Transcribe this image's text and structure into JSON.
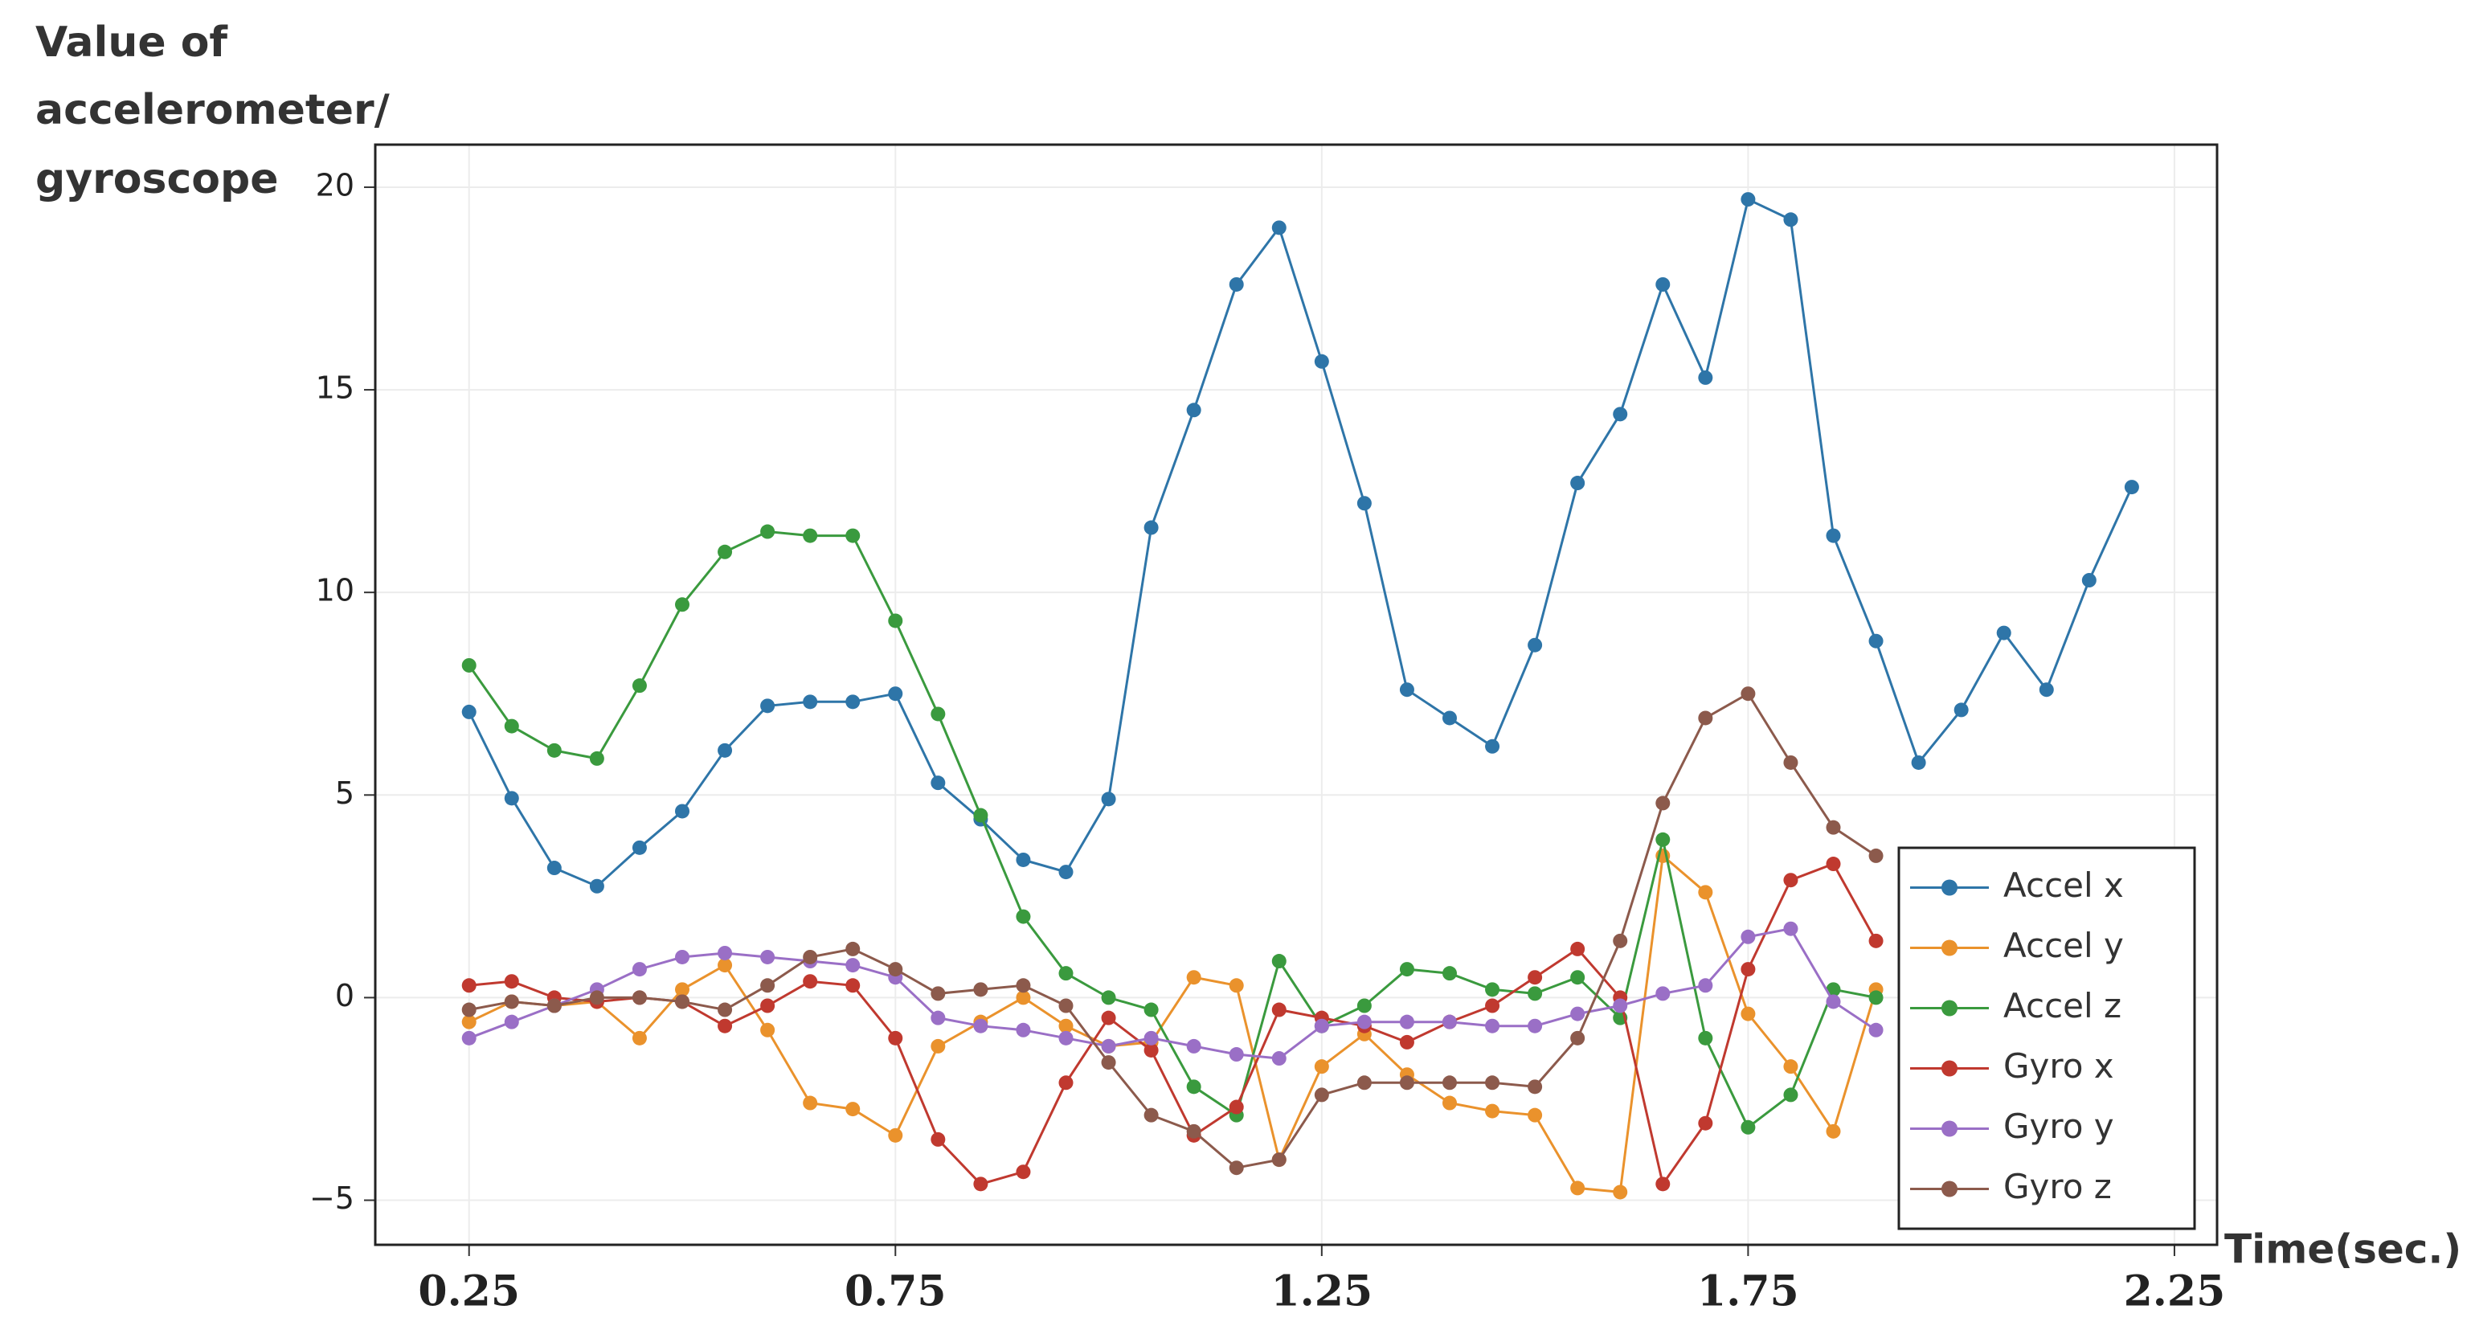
{
  "chart_data": {
    "type": "line",
    "ylabel": [
      "Value of",
      "accelerometer/",
      "gyroscope"
    ],
    "xlabel": "Time(sec.)",
    "x": [
      0.25,
      0.3,
      0.35,
      0.4,
      0.45,
      0.5,
      0.55,
      0.6,
      0.65,
      0.7,
      0.75,
      0.8,
      0.85,
      0.9,
      0.95,
      1.0,
      1.05,
      1.1,
      1.15,
      1.2,
      1.25,
      1.3,
      1.35,
      1.4,
      1.45,
      1.5,
      1.55,
      1.6,
      1.65,
      1.7,
      1.75,
      1.8,
      1.85,
      1.9,
      1.95,
      2.0,
      2.05,
      2.1,
      2.15,
      2.2
    ],
    "series": [
      {
        "name": "Accel x",
        "color": "#2e75a8",
        "values": [
          7.05,
          4.92,
          3.2,
          2.75,
          3.7,
          4.6,
          6.1,
          7.2,
          7.3,
          7.3,
          7.5,
          5.3,
          4.4,
          3.4,
          3.1,
          4.9,
          11.6,
          14.5,
          17.6,
          19.0,
          15.7,
          12.2,
          7.6,
          6.9,
          6.2,
          8.7,
          12.7,
          14.4,
          17.6,
          15.3,
          19.7,
          19.2,
          11.4,
          8.8,
          5.8,
          7.1,
          9.0,
          7.6,
          10.3,
          12.6
        ]
      },
      {
        "name": "Accel y",
        "color": "#ea922c",
        "values": [
          -0.6,
          -0.1,
          -0.2,
          -0.1,
          -1.0,
          0.2,
          0.8,
          -0.8,
          -2.6,
          -2.75,
          -3.4,
          -1.2,
          -0.6,
          0.0,
          -0.7,
          -1.2,
          -1.1,
          0.5,
          0.3,
          -4.0,
          -1.7,
          -0.9,
          -1.9,
          -2.6,
          -2.8,
          -2.9,
          -4.7,
          -4.8,
          3.5,
          2.6,
          -0.4,
          -1.7,
          -3.3,
          0.2,
          null,
          null,
          null,
          null,
          null,
          null
        ]
      },
      {
        "name": "Accel z",
        "color": "#3a9a3e",
        "values": [
          8.2,
          6.7,
          6.1,
          5.9,
          7.7,
          9.7,
          11.0,
          11.5,
          11.4,
          11.4,
          9.3,
          7.0,
          4.5,
          2.0,
          0.6,
          0.0,
          -0.3,
          -2.2,
          -2.9,
          0.9,
          -0.7,
          -0.2,
          0.7,
          0.6,
          0.2,
          0.1,
          0.5,
          -0.5,
          3.9,
          -1.0,
          -3.2,
          -2.4,
          0.2,
          0.0,
          null,
          null,
          null,
          null,
          null,
          null
        ]
      },
      {
        "name": "Gyro x",
        "color": "#c0392f",
        "values": [
          0.3,
          0.4,
          0.0,
          -0.1,
          0.0,
          -0.1,
          -0.7,
          -0.2,
          0.4,
          0.3,
          -1.0,
          -3.5,
          -4.6,
          -4.3,
          -2.1,
          -0.5,
          -1.3,
          -3.4,
          -2.7,
          -0.3,
          -0.5,
          -0.7,
          -1.1,
          -0.6,
          -0.2,
          0.5,
          1.2,
          0.0,
          -4.6,
          -3.1,
          0.7,
          2.9,
          3.3,
          1.4,
          null,
          null,
          null,
          null,
          null,
          null
        ]
      },
      {
        "name": "Gyro y",
        "color": "#9a6fc6",
        "values": [
          -1.0,
          -0.6,
          -0.2,
          0.2,
          0.7,
          1.0,
          1.1,
          1.0,
          0.9,
          0.8,
          0.5,
          -0.5,
          -0.7,
          -0.8,
          -1.0,
          -1.2,
          -1.0,
          -1.2,
          -1.4,
          -1.5,
          -0.7,
          -0.6,
          -0.6,
          -0.6,
          -0.7,
          -0.7,
          -0.4,
          -0.2,
          0.1,
          0.3,
          1.5,
          1.7,
          -0.1,
          -0.8,
          null,
          null,
          null,
          null,
          null,
          null
        ]
      },
      {
        "name": "Gyro z",
        "color": "#8c5a4c",
        "values": [
          -0.3,
          -0.1,
          -0.2,
          0.0,
          0.0,
          -0.1,
          -0.3,
          0.3,
          1.0,
          1.2,
          0.7,
          0.1,
          0.2,
          0.3,
          -0.2,
          -1.6,
          -2.9,
          -3.3,
          -4.2,
          -4.0,
          -2.4,
          -2.1,
          -2.1,
          -2.1,
          -2.1,
          -2.2,
          -1.0,
          1.4,
          4.8,
          6.9,
          7.5,
          5.8,
          4.2,
          3.5,
          null,
          null,
          null,
          null,
          null,
          null
        ]
      }
    ],
    "xlim": [
      0.14,
      2.3
    ],
    "ylim": [
      -6.1,
      21.05
    ],
    "xticks": [
      0.25,
      0.75,
      1.25,
      1.75,
      2.25
    ],
    "yticks": [
      {
        "value": -5,
        "label": "−5"
      },
      0,
      5,
      10,
      15,
      20
    ],
    "grid": true,
    "legend": "lower right"
  }
}
